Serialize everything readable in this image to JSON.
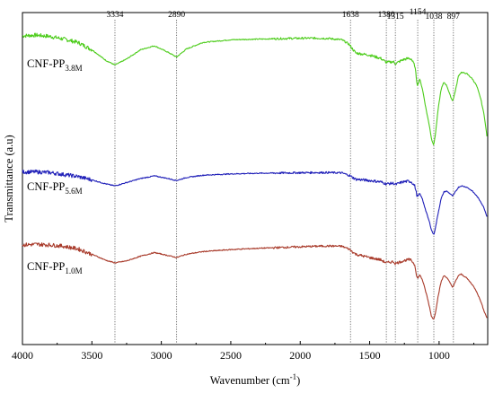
{
  "chart_data": {
    "type": "line",
    "title": "",
    "xlabel": "Wavenumber (cm",
    "xlabel_sup": "-1",
    "xlabel_close": ")",
    "ylabel": "Transmittance (a.u)",
    "xlim": [
      4000,
      650
    ],
    "x_reversed": true,
    "y_ticks_shown": false,
    "grid": false,
    "x_ticks": [
      "4000",
      "3500",
      "3000",
      "2500",
      "2000",
      "1500",
      "1000"
    ],
    "x_tick_values": [
      4000,
      3500,
      3000,
      2500,
      2000,
      1500,
      1000
    ],
    "peak_markers": [
      {
        "label": "3334",
        "x": 3334
      },
      {
        "label": "2890",
        "x": 2890
      },
      {
        "label": "1638",
        "x": 1638
      },
      {
        "label": "1380",
        "x": 1380
      },
      {
        "label": "1315",
        "x": 1315
      },
      {
        "label": "1154",
        "x": 1154
      },
      {
        "label": "1038",
        "x": 1038
      },
      {
        "label": "897",
        "x": 897
      }
    ],
    "series": [
      {
        "name": "CNF-PP",
        "name_sub": "3.8M",
        "color": "#4ccc1a",
        "points": [
          [
            4000,
            0.93
          ],
          [
            3900,
            0.932
          ],
          [
            3800,
            0.928
          ],
          [
            3700,
            0.92
          ],
          [
            3600,
            0.91
          ],
          [
            3500,
            0.888
          ],
          [
            3400,
            0.856
          ],
          [
            3334,
            0.842
          ],
          [
            3250,
            0.86
          ],
          [
            3150,
            0.888
          ],
          [
            3050,
            0.9
          ],
          [
            2950,
            0.88
          ],
          [
            2890,
            0.866
          ],
          [
            2820,
            0.89
          ],
          [
            2700,
            0.91
          ],
          [
            2500,
            0.918
          ],
          [
            2300,
            0.92
          ],
          [
            2100,
            0.922
          ],
          [
            1900,
            0.923
          ],
          [
            1800,
            0.922
          ],
          [
            1700,
            0.918
          ],
          [
            1650,
            0.905
          ],
          [
            1600,
            0.878
          ],
          [
            1500,
            0.872
          ],
          [
            1420,
            0.862
          ],
          [
            1380,
            0.85
          ],
          [
            1330,
            0.852
          ],
          [
            1315,
            0.846
          ],
          [
            1260,
            0.858
          ],
          [
            1220,
            0.862
          ],
          [
            1200,
            0.86
          ],
          [
            1175,
            0.84
          ],
          [
            1160,
            0.792
          ],
          [
            1154,
            0.78
          ],
          [
            1140,
            0.8
          ],
          [
            1120,
            0.77
          ],
          [
            1090,
            0.7
          ],
          [
            1070,
            0.66
          ],
          [
            1055,
            0.62
          ],
          [
            1038,
            0.6
          ],
          [
            1025,
            0.64
          ],
          [
            1005,
            0.715
          ],
          [
            985,
            0.77
          ],
          [
            965,
            0.79
          ],
          [
            945,
            0.78
          ],
          [
            920,
            0.75
          ],
          [
            905,
            0.735
          ],
          [
            897,
            0.74
          ],
          [
            880,
            0.77
          ],
          [
            860,
            0.81
          ],
          [
            840,
            0.82
          ],
          [
            800,
            0.816
          ],
          [
            760,
            0.8
          ],
          [
            730,
            0.78
          ],
          [
            700,
            0.74
          ],
          [
            675,
            0.69
          ],
          [
            655,
            0.625
          ]
        ]
      },
      {
        "name": "CNF-PP",
        "name_sub": "5.6M",
        "color": "#1f1fb8",
        "points": [
          [
            4000,
            0.52
          ],
          [
            3900,
            0.52
          ],
          [
            3800,
            0.518
          ],
          [
            3700,
            0.512
          ],
          [
            3600,
            0.506
          ],
          [
            3500,
            0.496
          ],
          [
            3400,
            0.484
          ],
          [
            3334,
            0.478
          ],
          [
            3250,
            0.488
          ],
          [
            3150,
            0.5
          ],
          [
            3050,
            0.508
          ],
          [
            2950,
            0.5
          ],
          [
            2890,
            0.494
          ],
          [
            2820,
            0.503
          ],
          [
            2700,
            0.51
          ],
          [
            2500,
            0.514
          ],
          [
            2300,
            0.516
          ],
          [
            2100,
            0.517
          ],
          [
            1900,
            0.518
          ],
          [
            1800,
            0.518
          ],
          [
            1700,
            0.517
          ],
          [
            1650,
            0.51
          ],
          [
            1600,
            0.498
          ],
          [
            1500,
            0.494
          ],
          [
            1420,
            0.49
          ],
          [
            1380,
            0.484
          ],
          [
            1330,
            0.486
          ],
          [
            1315,
            0.482
          ],
          [
            1260,
            0.49
          ],
          [
            1220,
            0.492
          ],
          [
            1200,
            0.49
          ],
          [
            1175,
            0.478
          ],
          [
            1160,
            0.45
          ],
          [
            1154,
            0.445
          ],
          [
            1140,
            0.455
          ],
          [
            1120,
            0.438
          ],
          [
            1090,
            0.395
          ],
          [
            1070,
            0.37
          ],
          [
            1055,
            0.345
          ],
          [
            1038,
            0.33
          ],
          [
            1025,
            0.355
          ],
          [
            1005,
            0.4
          ],
          [
            985,
            0.44
          ],
          [
            965,
            0.46
          ],
          [
            945,
            0.462
          ],
          [
            920,
            0.454
          ],
          [
            905,
            0.448
          ],
          [
            897,
            0.45
          ],
          [
            880,
            0.462
          ],
          [
            860,
            0.474
          ],
          [
            840,
            0.478
          ],
          [
            800,
            0.474
          ],
          [
            760,
            0.462
          ],
          [
            730,
            0.448
          ],
          [
            700,
            0.43
          ],
          [
            675,
            0.41
          ],
          [
            655,
            0.385
          ]
        ]
      },
      {
        "name": "CNF-PP",
        "name_sub": "1.0M",
        "color": "#a83a2a",
        "points": [
          [
            4000,
            0.3
          ],
          [
            3900,
            0.302
          ],
          [
            3800,
            0.3
          ],
          [
            3700,
            0.296
          ],
          [
            3600,
            0.288
          ],
          [
            3500,
            0.272
          ],
          [
            3400,
            0.254
          ],
          [
            3334,
            0.246
          ],
          [
            3250,
            0.252
          ],
          [
            3150,
            0.266
          ],
          [
            3050,
            0.277
          ],
          [
            2950,
            0.268
          ],
          [
            2890,
            0.262
          ],
          [
            2820,
            0.272
          ],
          [
            2700,
            0.28
          ],
          [
            2500,
            0.286
          ],
          [
            2300,
            0.29
          ],
          [
            2100,
            0.293
          ],
          [
            1900,
            0.296
          ],
          [
            1800,
            0.297
          ],
          [
            1700,
            0.296
          ],
          [
            1650,
            0.288
          ],
          [
            1600,
            0.272
          ],
          [
            1500,
            0.262
          ],
          [
            1420,
            0.255
          ],
          [
            1380,
            0.246
          ],
          [
            1330,
            0.25
          ],
          [
            1315,
            0.244
          ],
          [
            1260,
            0.252
          ],
          [
            1220,
            0.256
          ],
          [
            1200,
            0.254
          ],
          [
            1175,
            0.24
          ],
          [
            1160,
            0.205
          ],
          [
            1154,
            0.198
          ],
          [
            1140,
            0.21
          ],
          [
            1120,
            0.195
          ],
          [
            1090,
            0.15
          ],
          [
            1070,
            0.115
          ],
          [
            1055,
            0.085
          ],
          [
            1038,
            0.075
          ],
          [
            1025,
            0.1
          ],
          [
            1005,
            0.15
          ],
          [
            985,
            0.19
          ],
          [
            965,
            0.208
          ],
          [
            945,
            0.202
          ],
          [
            920,
            0.185
          ],
          [
            905,
            0.174
          ],
          [
            897,
            0.176
          ],
          [
            880,
            0.192
          ],
          [
            860,
            0.208
          ],
          [
            840,
            0.212
          ],
          [
            800,
            0.2
          ],
          [
            760,
            0.18
          ],
          [
            730,
            0.16
          ],
          [
            700,
            0.13
          ],
          [
            675,
            0.1
          ],
          [
            655,
            0.08
          ]
        ]
      }
    ]
  }
}
